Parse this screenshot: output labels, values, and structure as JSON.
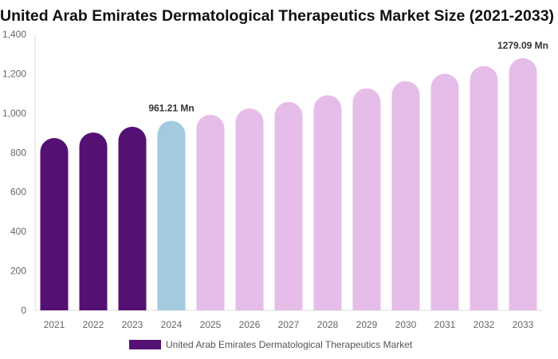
{
  "chart_data": {
    "type": "bar",
    "title": "United Arab Emirates Dermatological Therapeutics Market Size (2021-2033)",
    "categories": [
      "2021",
      "2022",
      "2023",
      "2024",
      "2025",
      "2026",
      "2027",
      "2028",
      "2029",
      "2030",
      "2031",
      "2032",
      "2033"
    ],
    "series": [
      {
        "name": "United Arab Emirates Dermatological Therapeutics Market",
        "values": [
          874,
          902,
          931,
          961.21,
          992,
          1024,
          1057,
          1091,
          1126,
          1163,
          1200,
          1239,
          1279.09
        ]
      }
    ],
    "data_labels": [
      {
        "category": "2024",
        "text": "961.21 Mn"
      },
      {
        "category": "2033",
        "text": "1279.09 Mn"
      }
    ],
    "ylim": [
      0,
      1400
    ],
    "yticks": [
      "0",
      "200",
      "400",
      "600",
      "800",
      "1,000",
      "1,200",
      "1,400"
    ],
    "grid": false,
    "legend": "bottom",
    "colors": {
      "historical": "#541173",
      "base_year": "#a3cadf",
      "forecast": "#e6bde9"
    }
  }
}
